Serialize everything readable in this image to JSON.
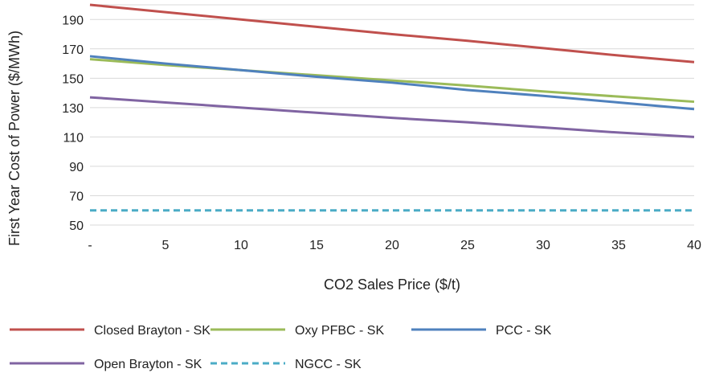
{
  "chart_data": {
    "type": "line",
    "title": "",
    "xlabel": "CO2 Sales Price ($/t)",
    "ylabel": "First Year Cost of Power ($/MWh)",
    "x": [
      0,
      5,
      10,
      15,
      20,
      25,
      30,
      35,
      40
    ],
    "x_tick_labels": [
      "-",
      "5",
      "10",
      "15",
      "20",
      "25",
      "30",
      "35",
      "40"
    ],
    "xlim": [
      0,
      40
    ],
    "ylim": [
      50,
      200
    ],
    "y_ticks": [
      50,
      70,
      90,
      110,
      130,
      150,
      170,
      190
    ],
    "grid": "horizontal",
    "legend_placement": "bottom",
    "series": [
      {
        "name": "Closed Brayton - SK",
        "color": "#c0504d",
        "dash": false,
        "values": [
          200,
          195,
          190,
          185,
          180,
          175.5,
          170.5,
          165.5,
          161
        ]
      },
      {
        "name": "Oxy PFBC - SK",
        "color": "#9bbb59",
        "dash": false,
        "values": [
          163,
          159,
          155.5,
          152,
          148.5,
          145,
          141,
          137.5,
          134
        ]
      },
      {
        "name": "PCC - SK",
        "color": "#4f81bd",
        "dash": false,
        "values": [
          165,
          160,
          155.5,
          151,
          147,
          142,
          138,
          133.5,
          129
        ]
      },
      {
        "name": "Open Brayton - SK",
        "color": "#8064a2",
        "dash": false,
        "values": [
          137,
          133.5,
          130,
          126.5,
          123,
          120,
          116.5,
          113,
          110
        ]
      },
      {
        "name": "NGCC - SK",
        "color": "#4bacc6",
        "dash": true,
        "values": [
          60,
          60,
          60,
          60,
          60,
          60,
          60,
          60,
          60
        ]
      }
    ]
  }
}
